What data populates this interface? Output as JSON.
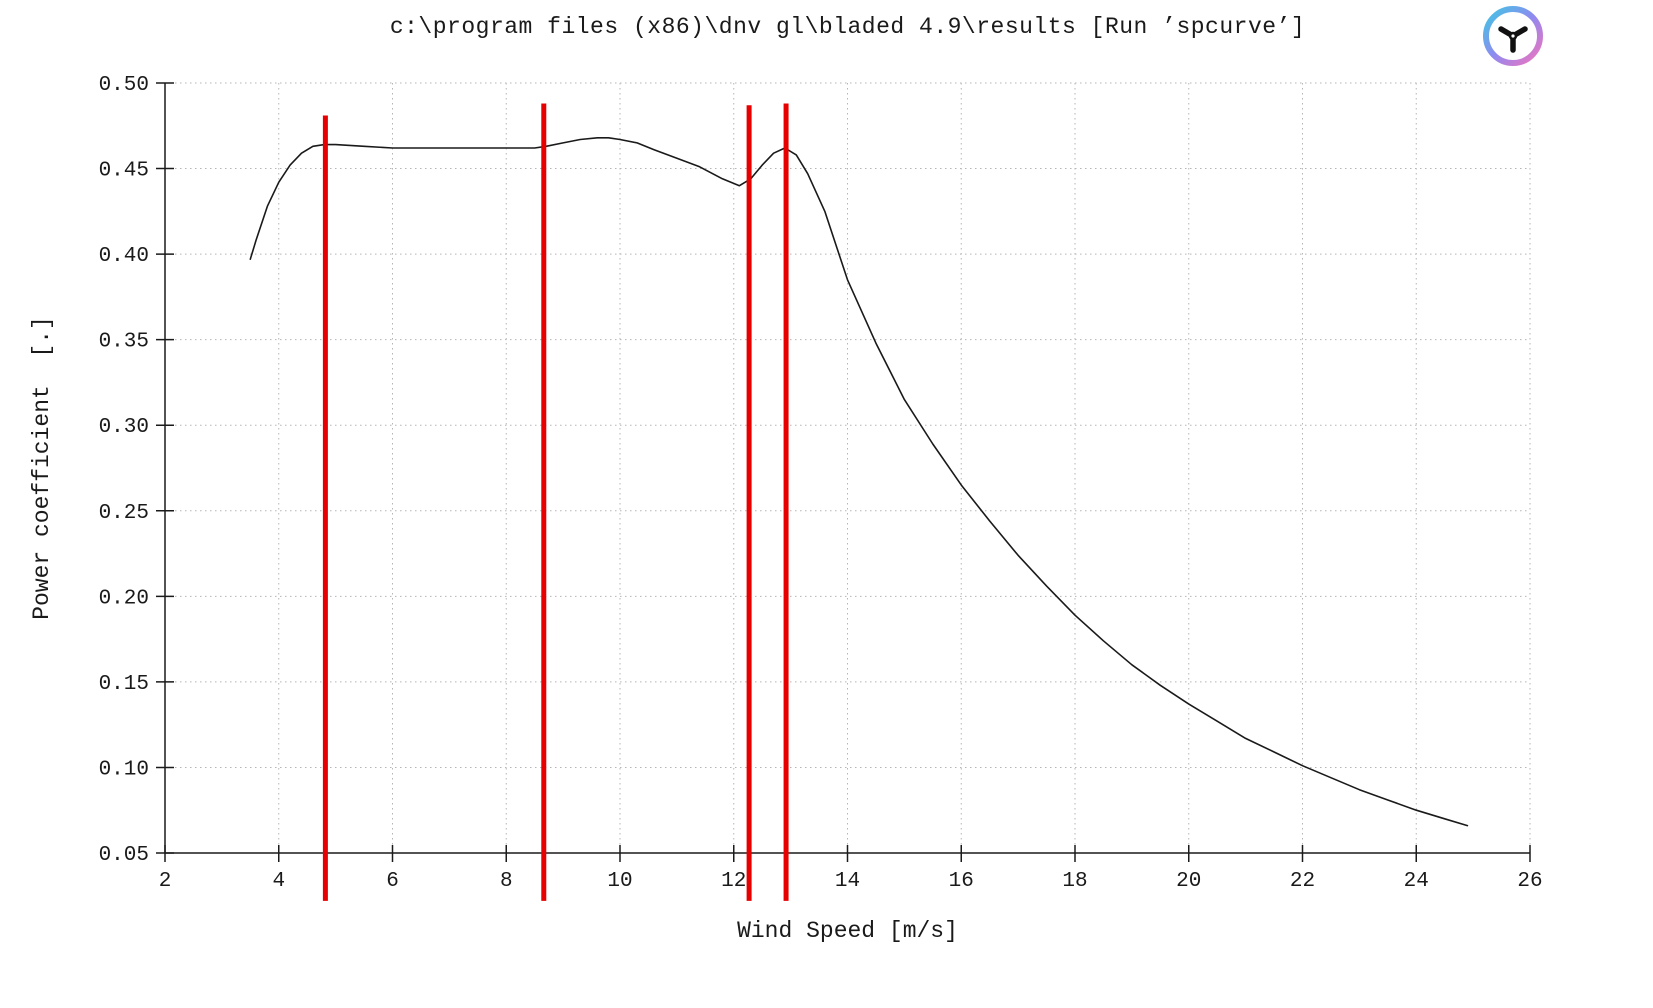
{
  "colors": {
    "curve": "#1a1a1a",
    "marker_red": "#e60000",
    "logo_gradient_start": "#3fc7e3",
    "logo_gradient_mid": "#8f8af0",
    "logo_gradient_end": "#f173bd"
  },
  "logo": {
    "name": "bladed-rotor-logo"
  },
  "chart_data": {
    "type": "line",
    "title": "c:\\program files (x86)\\dnv gl\\bladed 4.9\\results [Run ’spcurve’]",
    "xlabel": "Wind Speed [m/s]",
    "ylabel": "Power coefficient  [.]",
    "xlim": [
      2,
      26
    ],
    "ylim": [
      0.05,
      0.5
    ],
    "grid": true,
    "legend": "none",
    "x_ticks": [
      2,
      4,
      6,
      8,
      10,
      12,
      14,
      16,
      18,
      20,
      22,
      24,
      26
    ],
    "x_tick_labels": [
      "2",
      "4",
      "6",
      "8",
      "10",
      "12",
      "14",
      "16",
      "18",
      "20",
      "22",
      "24",
      "26"
    ],
    "y_ticks": [
      0.05,
      0.1,
      0.15,
      0.2,
      0.25,
      0.3,
      0.35,
      0.4,
      0.45,
      0.5
    ],
    "y_tick_labels": [
      "0.05",
      "0.10",
      "0.15",
      "0.20",
      "0.25",
      "0.30",
      "0.35",
      "0.40",
      "0.45",
      "0.50"
    ],
    "series": [
      {
        "name": "Power coefficient",
        "color": "#1a1a1a",
        "x": [
          3.5,
          3.6,
          3.8,
          4.0,
          4.2,
          4.4,
          4.6,
          4.8,
          5.0,
          5.5,
          6.0,
          6.5,
          7.0,
          7.5,
          8.0,
          8.5,
          8.7,
          9.0,
          9.3,
          9.6,
          9.8,
          10.0,
          10.3,
          10.6,
          11.0,
          11.4,
          11.8,
          12.1,
          12.3,
          12.5,
          12.7,
          12.9,
          13.1,
          13.3,
          13.6,
          14.0,
          14.5,
          15.0,
          15.5,
          16.0,
          16.5,
          17.0,
          17.5,
          18.0,
          18.5,
          19.0,
          19.5,
          20.0,
          20.5,
          21.0,
          21.5,
          22.0,
          22.5,
          23.0,
          23.5,
          24.0,
          24.5,
          24.9
        ],
        "y": [
          0.397,
          0.408,
          0.428,
          0.442,
          0.452,
          0.459,
          0.463,
          0.464,
          0.464,
          0.463,
          0.462,
          0.462,
          0.462,
          0.462,
          0.462,
          0.462,
          0.463,
          0.465,
          0.467,
          0.468,
          0.468,
          0.467,
          0.465,
          0.461,
          0.456,
          0.451,
          0.444,
          0.44,
          0.444,
          0.452,
          0.459,
          0.462,
          0.458,
          0.447,
          0.425,
          0.385,
          0.348,
          0.315,
          0.289,
          0.265,
          0.244,
          0.224,
          0.206,
          0.189,
          0.174,
          0.16,
          0.148,
          0.137,
          0.127,
          0.117,
          0.109,
          0.101,
          0.094,
          0.087,
          0.081,
          0.075,
          0.07,
          0.066
        ]
      }
    ],
    "vertical_markers": {
      "color": "#e60000",
      "x": [
        4.82,
        8.66,
        12.27,
        12.92
      ],
      "y_top": [
        0.481,
        0.488,
        0.487,
        0.488
      ],
      "y_bottom": 0.022
    }
  }
}
